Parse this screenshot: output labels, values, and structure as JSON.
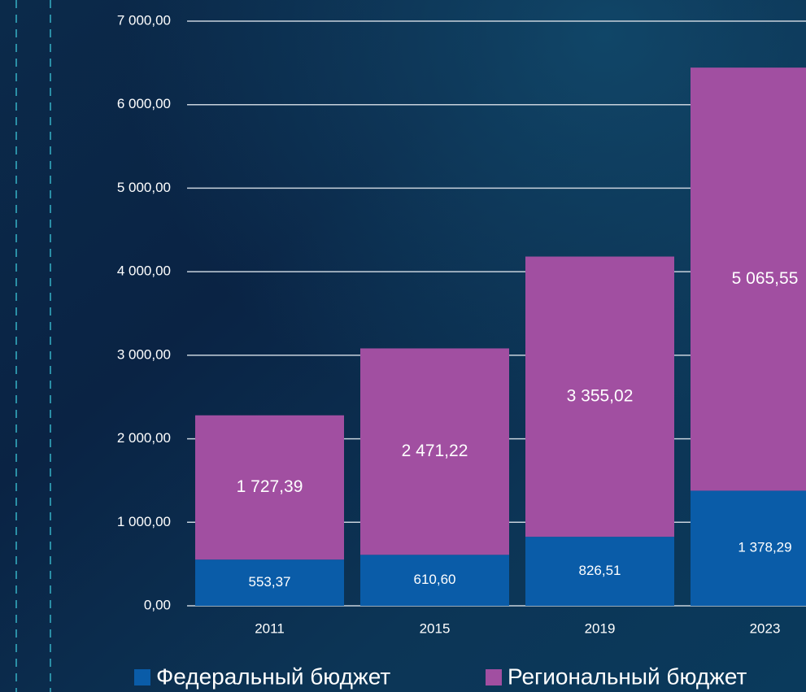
{
  "chart_data": {
    "type": "stacked_bar",
    "categories": [
      "2011",
      "2015",
      "2019",
      "2023"
    ],
    "series": [
      {
        "name": "Федеральный бюджет",
        "color": "#0a5ca8",
        "values": [
          553.37,
          610.6,
          826.51,
          1378.29
        ],
        "value_labels": [
          "553,37",
          "610,60",
          "826,51",
          "1 378,29"
        ]
      },
      {
        "name": "Региональный бюджет",
        "color": "#a14fa1",
        "values": [
          1727.39,
          2471.22,
          3355.02,
          5065.55
        ],
        "value_labels": [
          "1 727,39",
          "2 471,22",
          "3 355,02",
          "5 065,55"
        ]
      }
    ],
    "ylim": [
      0,
      7000
    ],
    "yticks": [
      {
        "value": 0,
        "label": "0,00"
      },
      {
        "value": 1000,
        "label": "1 000,00"
      },
      {
        "value": 2000,
        "label": "2 000,00"
      },
      {
        "value": 3000,
        "label": "3 000,00"
      },
      {
        "value": 4000,
        "label": "4 000,00"
      },
      {
        "value": 5000,
        "label": "5 000,00"
      },
      {
        "value": 6000,
        "label": "6 000,00"
      },
      {
        "value": 7000,
        "label": "7 000,00"
      }
    ],
    "grid": true,
    "legend": "bottom"
  }
}
